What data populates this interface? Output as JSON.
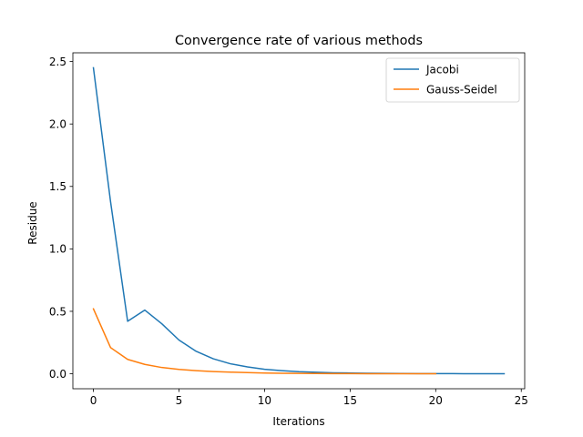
{
  "chart_data": {
    "type": "line",
    "title": "Convergence rate of various methods",
    "xlabel": "Iterations",
    "ylabel": "Residue",
    "xlim": [
      -1.2,
      25.2
    ],
    "ylim": [
      -0.12,
      2.57
    ],
    "xticks": [
      0,
      5,
      10,
      15,
      20,
      25
    ],
    "xtick_labels": [
      "0",
      "5",
      "10",
      "15",
      "20",
      "25"
    ],
    "yticks": [
      0.0,
      0.5,
      1.0,
      1.5,
      2.0,
      2.5
    ],
    "ytick_labels": [
      "0.0",
      "0.5",
      "1.0",
      "1.5",
      "2.0",
      "2.5"
    ],
    "grid": false,
    "legend_position": "top-right",
    "series": [
      {
        "name": "Jacobi",
        "color": "#1f77b4",
        "x": [
          0,
          1,
          2,
          3,
          4,
          5,
          6,
          7,
          8,
          9,
          10,
          11,
          12,
          13,
          14,
          15,
          16,
          17,
          18,
          19,
          20,
          21,
          22,
          23,
          24
        ],
        "y": [
          2.45,
          1.38,
          0.42,
          0.51,
          0.4,
          0.27,
          0.18,
          0.12,
          0.08,
          0.055,
          0.036,
          0.025,
          0.017,
          0.012,
          0.008,
          0.006,
          0.004,
          0.003,
          0.002,
          0.0015,
          0.001,
          0.0008,
          0.0005,
          0.0004,
          0.0003
        ]
      },
      {
        "name": "Gauss-Seidel",
        "color": "#ff7f0e",
        "x": [
          0,
          1,
          2,
          3,
          4,
          5,
          6,
          7,
          8,
          9,
          10,
          11,
          12,
          13,
          14,
          15,
          16,
          17,
          18,
          19,
          20
        ],
        "y": [
          0.52,
          0.21,
          0.115,
          0.075,
          0.05,
          0.035,
          0.025,
          0.018,
          0.013,
          0.009,
          0.006,
          0.004,
          0.003,
          0.002,
          0.0015,
          0.001,
          0.0007,
          0.0005,
          0.0003,
          0.0002,
          0.0001
        ]
      }
    ]
  }
}
